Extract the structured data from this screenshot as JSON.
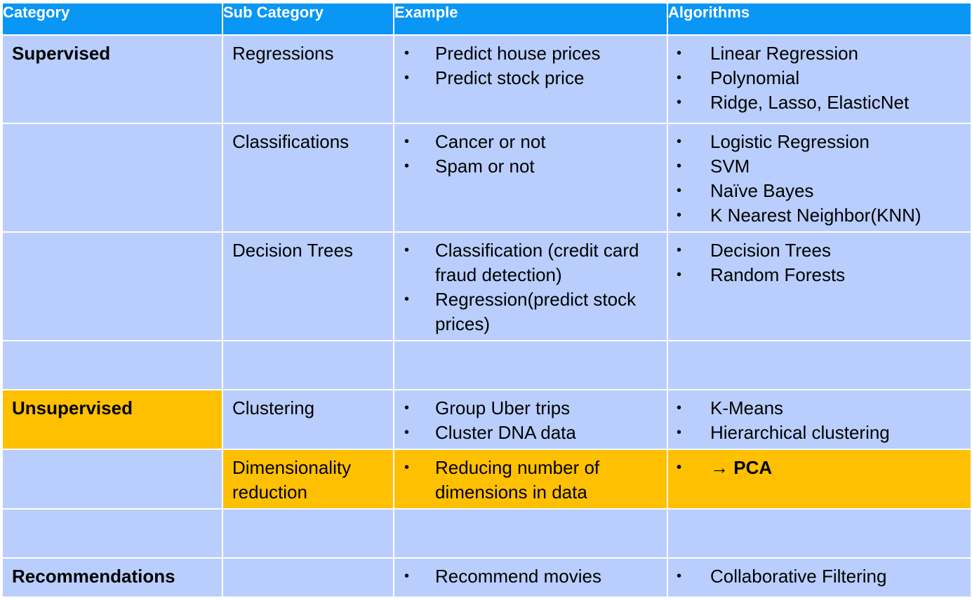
{
  "headers": [
    "Category",
    "Sub Category",
    "Example",
    "Algorithms"
  ],
  "rows": [
    {
      "category": "Supervised",
      "subcategory": "Regressions",
      "examples": [
        "Predict house prices",
        "Predict stock price"
      ],
      "algorithms": [
        "Linear Regression",
        "Polynomial",
        "Ridge, Lasso, ElasticNet"
      ]
    },
    {
      "category": "",
      "subcategory": "Classifications",
      "examples": [
        "Cancer or not",
        "Spam or not"
      ],
      "algorithms": [
        "Logistic Regression",
        "SVM",
        "Naïve  Bayes",
        "K Nearest Neighbor(KNN)"
      ]
    },
    {
      "category": "",
      "subcategory": "Decision Trees",
      "examples": [
        "Classification (credit card fraud detection)",
        "Regression(predict stock prices)"
      ],
      "algorithms": [
        "Decision Trees",
        "Random Forests"
      ]
    },
    {
      "category": "",
      "subcategory": "",
      "examples": [],
      "algorithms": []
    },
    {
      "category": "Unsupervised",
      "subcategory": "Clustering",
      "examples": [
        "Group Uber trips",
        "Cluster DNA data"
      ],
      "algorithms": [
        "K-Means",
        "Hierarchical clustering"
      ]
    },
    {
      "category": "",
      "subcategory": "Dimensionality reduction",
      "examples": [
        "Reducing number of dimensions in data"
      ],
      "algorithms": [
        "→ PCA"
      ]
    },
    {
      "category": "",
      "subcategory": "",
      "examples": [],
      "algorithms": []
    },
    {
      "category": "Recommendations",
      "subcategory": "",
      "examples": [
        "Recommend movies"
      ],
      "algorithms": [
        "Collaborative Filtering"
      ]
    }
  ],
  "colors": {
    "header": "#0996f4",
    "cell": "#b9cefc",
    "highlight": "#fec001"
  }
}
